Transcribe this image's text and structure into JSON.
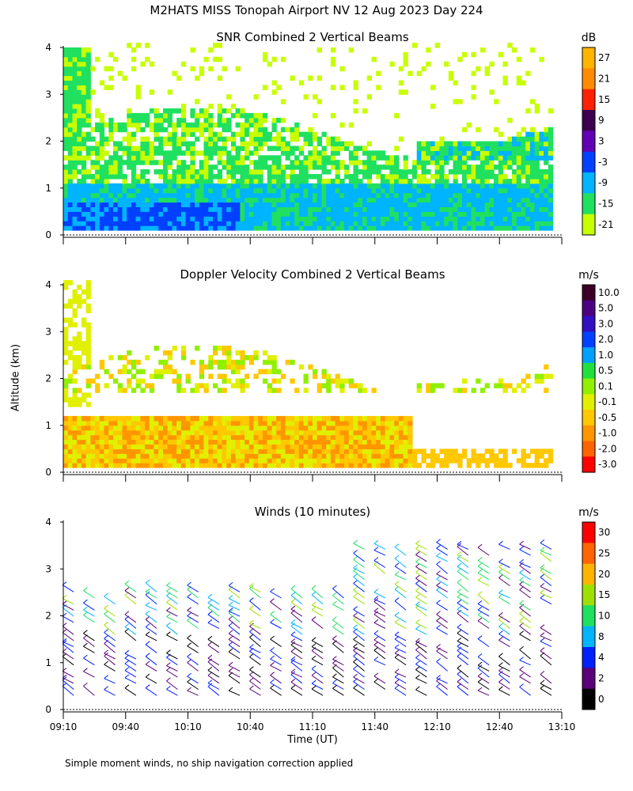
{
  "title": "M2HATS MISS Tonopah Airport NV  12 Aug 2023 Day 224",
  "footnote": "Simple moment winds, no ship navigation correction applied",
  "chart_data": [
    {
      "type": "heatmap",
      "title": "SNR Combined 2 Vertical Beams",
      "ylabel": "Altitude (km)",
      "xlabel": "Time (UT)",
      "ylim": [
        0,
        4
      ],
      "yticks": [
        0,
        1,
        2,
        3,
        4
      ],
      "xlim": [
        "09:10",
        "13:10"
      ],
      "colorbar_unit": "dB",
      "colorbar_labels": [
        "27",
        "21",
        "15",
        "9",
        "3",
        "-3",
        "-9",
        "-15",
        "-21"
      ],
      "colorbar_colors": [
        "#ffb400",
        "#ff8c00",
        "#ff2000",
        "#3c0050",
        "#6400b4",
        "#0040ff",
        "#00b4ff",
        "#20e060",
        "#c8ff00"
      ],
      "description_layers": [
        {
          "color": "#00b4ff",
          "alt_km": [
            0.1,
            1.0
          ],
          "time_range": [
            "09:10",
            "11:00"
          ]
        },
        {
          "color": "#0040ff",
          "alt_km": [
            0.1,
            0.7
          ],
          "time_range": [
            "09:10",
            "10:00"
          ]
        },
        {
          "color": "#20e060",
          "alt_km": [
            1.5,
            2.3
          ],
          "time_range": [
            "09:10",
            "13:10"
          ]
        },
        {
          "color": "#00b4ff",
          "alt_km": [
            1.6,
            2.5
          ],
          "time_range": [
            "12:20",
            "13:10"
          ]
        }
      ]
    },
    {
      "type": "heatmap",
      "title": "Doppler Velocity Combined 2 Vertical Beams",
      "ylabel": "Altitude (km)",
      "ylim": [
        0,
        4
      ],
      "yticks": [
        0,
        1,
        2,
        3,
        4
      ],
      "xlim": [
        "09:10",
        "13:10"
      ],
      "colorbar_unit": "m/s",
      "colorbar_labels": [
        "10.0",
        "5.0",
        "3.0",
        "2.0",
        "1.0",
        "0.5",
        "0.1",
        "-0.1",
        "-0.5",
        "-1.0",
        "-2.0",
        "-3.0"
      ],
      "colorbar_colors": [
        "#3c0028",
        "#4b0082",
        "#3010c0",
        "#0040ff",
        "#00a0ff",
        "#20e040",
        "#90f000",
        "#e0f000",
        "#ffc800",
        "#ff9600",
        "#ff6400",
        "#ff0000"
      ]
    },
    {
      "type": "scatter",
      "title": "Winds (10 minutes)",
      "ylabel": "Altitude (km)",
      "xlabel": "Time (UT)",
      "ylim": [
        0,
        4
      ],
      "yticks": [
        0,
        1,
        2,
        3,
        4
      ],
      "xticks": [
        "09:10",
        "09:40",
        "10:10",
        "10:40",
        "11:10",
        "11:40",
        "12:10",
        "12:40",
        "13:10"
      ],
      "colorbar_unit": "m/s",
      "colorbar_labels": [
        "30",
        "25",
        "20",
        "15",
        "10",
        "8",
        "4",
        "2",
        "0"
      ],
      "colorbar_colors": [
        "#ff0000",
        "#ff6400",
        "#ffb400",
        "#a0e000",
        "#20e060",
        "#00b4ff",
        "#0020ff",
        "#5a0078",
        "#000000"
      ]
    }
  ]
}
